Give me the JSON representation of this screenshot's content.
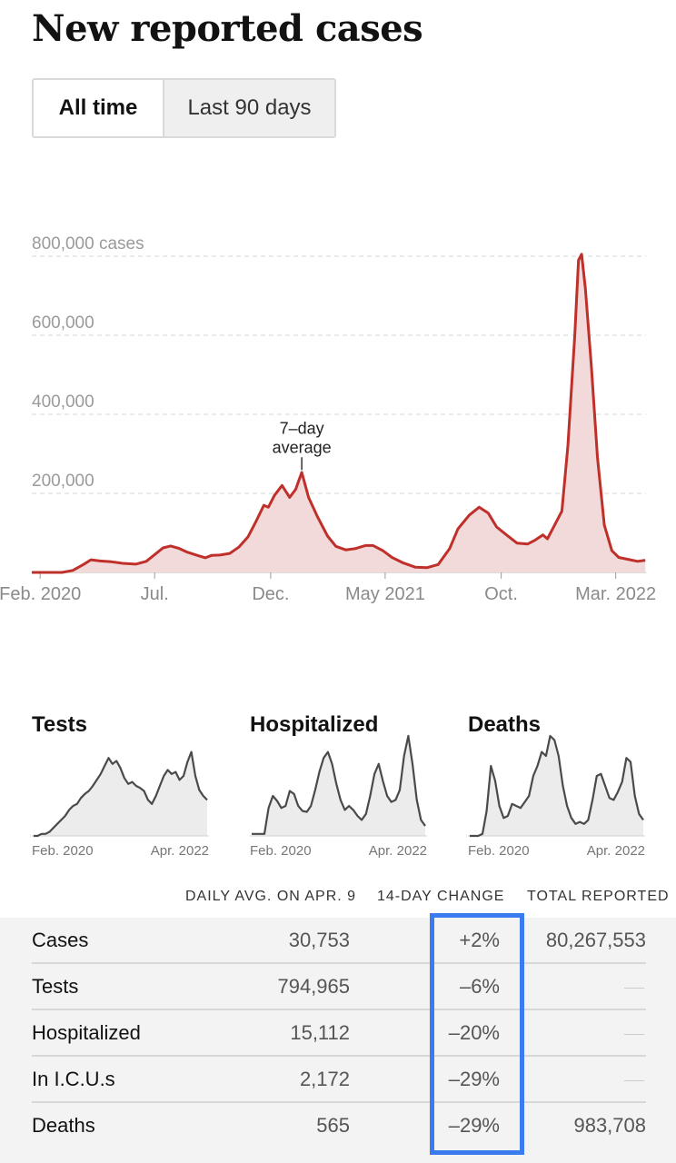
{
  "page": {
    "title": "New reported cases",
    "toggle": {
      "all_time": "All time",
      "last_90": "Last 90 days"
    }
  },
  "chart_data": [
    {
      "type": "area",
      "title": "New reported cases",
      "ylabel": "cases",
      "y_ticks": [
        {
          "value": 800000,
          "label": "800,000 cases"
        },
        {
          "value": 600000,
          "label": "600,000"
        },
        {
          "value": 400000,
          "label": "400,000"
        },
        {
          "value": 200000,
          "label": "200,000"
        }
      ],
      "ylim": [
        0,
        800000
      ],
      "xlim": [
        "2020-01-21",
        "2022-04-10"
      ],
      "x_ticks": [
        {
          "x": "2020-02-01",
          "label": "Feb. 2020"
        },
        {
          "x": "2020-07-01",
          "label": "Jul."
        },
        {
          "x": "2020-12-01",
          "label": "Dec."
        },
        {
          "x": "2021-05-01",
          "label": "May 2021"
        },
        {
          "x": "2021-10-01",
          "label": "Oct."
        },
        {
          "x": "2022-03-01",
          "label": "Mar. 2022"
        }
      ],
      "annotation": {
        "text_line1": "7–day",
        "text_line2": "average",
        "x": "2021-01-11",
        "y": 250000
      },
      "series": [
        {
          "color": "#c0302b",
          "fill": "#f3dada",
          "points": [
            [
              "2020-01-21",
              0
            ],
            [
              "2020-03-01",
              0
            ],
            [
              "2020-03-15",
              5000
            ],
            [
              "2020-03-29",
              20000
            ],
            [
              "2020-04-08",
              32000
            ],
            [
              "2020-04-20",
              29000
            ],
            [
              "2020-05-05",
              27000
            ],
            [
              "2020-05-20",
              23000
            ],
            [
              "2020-06-06",
              21000
            ],
            [
              "2020-06-20",
              28000
            ],
            [
              "2020-07-01",
              45000
            ],
            [
              "2020-07-12",
              62000
            ],
            [
              "2020-07-22",
              67000
            ],
            [
              "2020-08-02",
              61000
            ],
            [
              "2020-08-12",
              52000
            ],
            [
              "2020-08-25",
              44000
            ],
            [
              "2020-09-06",
              37000
            ],
            [
              "2020-09-14",
              43000
            ],
            [
              "2020-09-25",
              44000
            ],
            [
              "2020-10-08",
              48000
            ],
            [
              "2020-10-20",
              64000
            ],
            [
              "2020-11-01",
              90000
            ],
            [
              "2020-11-12",
              130000
            ],
            [
              "2020-11-22",
              170000
            ],
            [
              "2020-11-28",
              165000
            ],
            [
              "2020-12-06",
              195000
            ],
            [
              "2020-12-16",
              220000
            ],
            [
              "2020-12-26",
              190000
            ],
            [
              "2021-01-03",
              210000
            ],
            [
              "2021-01-11",
              253000
            ],
            [
              "2021-01-20",
              190000
            ],
            [
              "2021-02-01",
              140000
            ],
            [
              "2021-02-14",
              92000
            ],
            [
              "2021-02-25",
              66000
            ],
            [
              "2021-03-10",
              57000
            ],
            [
              "2021-03-22",
              60000
            ],
            [
              "2021-04-05",
              68000
            ],
            [
              "2021-04-15",
              68000
            ],
            [
              "2021-04-28",
              55000
            ],
            [
              "2021-05-10",
              38000
            ],
            [
              "2021-05-25",
              24000
            ],
            [
              "2021-06-10",
              13000
            ],
            [
              "2021-06-25",
              12000
            ],
            [
              "2021-07-10",
              20000
            ],
            [
              "2021-07-25",
              60000
            ],
            [
              "2021-08-05",
              110000
            ],
            [
              "2021-08-20",
              145000
            ],
            [
              "2021-09-02",
              165000
            ],
            [
              "2021-09-14",
              150000
            ],
            [
              "2021-09-25",
              115000
            ],
            [
              "2021-10-08",
              95000
            ],
            [
              "2021-10-22",
              74000
            ],
            [
              "2021-11-05",
              72000
            ],
            [
              "2021-11-15",
              82000
            ],
            [
              "2021-11-25",
              95000
            ],
            [
              "2021-12-01",
              85000
            ],
            [
              "2021-12-10",
              118000
            ],
            [
              "2021-12-20",
              155000
            ],
            [
              "2021-12-28",
              320000
            ],
            [
              "2022-01-06",
              600000
            ],
            [
              "2022-01-11",
              790000
            ],
            [
              "2022-01-15",
              805000
            ],
            [
              "2022-01-20",
              720000
            ],
            [
              "2022-01-28",
              520000
            ],
            [
              "2022-02-05",
              290000
            ],
            [
              "2022-02-14",
              120000
            ],
            [
              "2022-02-24",
              55000
            ],
            [
              "2022-03-05",
              38000
            ],
            [
              "2022-03-20",
              32000
            ],
            [
              "2022-03-30",
              28000
            ],
            [
              "2022-04-09",
              30753
            ]
          ]
        }
      ]
    },
    {
      "type": "area",
      "title": "Tests",
      "x_ticks": [
        "Feb. 2020",
        "Apr. 2022"
      ],
      "values": [
        0,
        0,
        0.02,
        0.02,
        0.04,
        0.08,
        0.12,
        0.16,
        0.2,
        0.26,
        0.3,
        0.32,
        0.38,
        0.42,
        0.45,
        0.5,
        0.56,
        0.62,
        0.7,
        0.78,
        0.72,
        0.75,
        0.68,
        0.58,
        0.52,
        0.54,
        0.5,
        0.48,
        0.45,
        0.36,
        0.32,
        0.4,
        0.5,
        0.6,
        0.66,
        0.62,
        0.64,
        0.56,
        0.6,
        0.74,
        0.84,
        0.6,
        0.46,
        0.4,
        0.36
      ]
    },
    {
      "type": "area",
      "title": "Hospitalized",
      "x_ticks": [
        "Feb. 2020",
        "Apr. 2022"
      ],
      "values": [
        0.02,
        0.02,
        0.02,
        0.02,
        0.28,
        0.4,
        0.35,
        0.28,
        0.3,
        0.45,
        0.42,
        0.3,
        0.25,
        0.24,
        0.3,
        0.46,
        0.64,
        0.78,
        0.84,
        0.72,
        0.52,
        0.36,
        0.26,
        0.3,
        0.26,
        0.2,
        0.16,
        0.22,
        0.4,
        0.62,
        0.72,
        0.55,
        0.4,
        0.34,
        0.36,
        0.46,
        0.8,
        1.0,
        0.72,
        0.36,
        0.16,
        0.1
      ]
    },
    {
      "type": "area",
      "title": "Deaths",
      "x_ticks": [
        "Feb. 2020",
        "Apr. 2022"
      ],
      "values": [
        0,
        0,
        0,
        0.02,
        0.25,
        0.7,
        0.55,
        0.3,
        0.18,
        0.2,
        0.32,
        0.3,
        0.28,
        0.34,
        0.4,
        0.6,
        0.7,
        0.84,
        0.8,
        1.0,
        0.96,
        0.8,
        0.5,
        0.3,
        0.18,
        0.12,
        0.14,
        0.12,
        0.16,
        0.36,
        0.6,
        0.62,
        0.5,
        0.38,
        0.36,
        0.44,
        0.54,
        0.78,
        0.74,
        0.4,
        0.22,
        0.16
      ]
    }
  ],
  "table": {
    "headers": {
      "avg": "DAILY AVG. ON APR. 9",
      "change": "14-DAY CHANGE",
      "total": "TOTAL REPORTED"
    },
    "rows": [
      {
        "label": "Cases",
        "avg": "30,753",
        "change": "+2%",
        "total": "80,267,553"
      },
      {
        "label": "Tests",
        "avg": "794,965",
        "change": "–6%",
        "total": ""
      },
      {
        "label": "Hospitalized",
        "avg": "15,112",
        "change": "–20%",
        "total": ""
      },
      {
        "label": "In I.C.U.s",
        "avg": "2,172",
        "change": "–29%",
        "total": ""
      },
      {
        "label": "Deaths",
        "avg": "565",
        "change": "–29%",
        "total": "983,708"
      }
    ]
  },
  "colors": {
    "line": "#c0302b",
    "area": "#f3dada",
    "spark_line": "#4a4a4a",
    "spark_fill": "#ececec",
    "highlight": "#3a7bf0"
  }
}
